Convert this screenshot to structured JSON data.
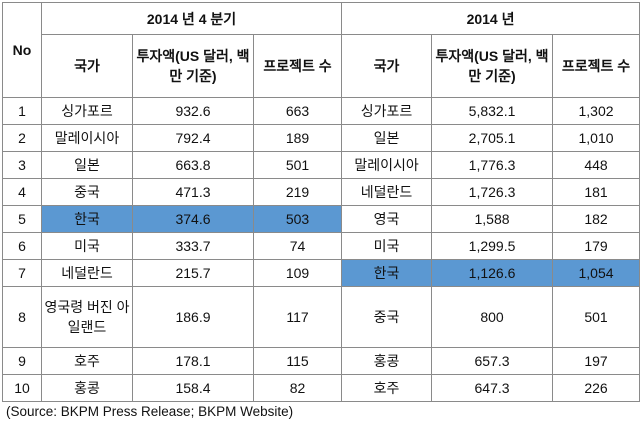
{
  "header": {
    "no": "No",
    "q4_group": "2014 년 4 분기",
    "year_group": "2014 년",
    "country": "국가",
    "investment": "투자액(US 달러, 백만 기준)",
    "projects": "프로젝트 수"
  },
  "highlight_color": "#5b98d2",
  "rows": [
    {
      "no": "1",
      "q4_country": "싱가포르",
      "q4_investment": "932.6",
      "q4_projects": "663",
      "y_country": "싱가포르",
      "y_investment": "5,832.1",
      "y_projects": "1,302"
    },
    {
      "no": "2",
      "q4_country": "말레이시아",
      "q4_investment": "792.4",
      "q4_projects": "189",
      "y_country": "일본",
      "y_investment": "2,705.1",
      "y_projects": "1,010"
    },
    {
      "no": "3",
      "q4_country": "일본",
      "q4_investment": "663.8",
      "q4_projects": "501",
      "y_country": "말레이시아",
      "y_investment": "1,776.3",
      "y_projects": "448"
    },
    {
      "no": "4",
      "q4_country": "중국",
      "q4_investment": "471.3",
      "q4_projects": "219",
      "y_country": "네덜란드",
      "y_investment": "1,726.3",
      "y_projects": "181"
    },
    {
      "no": "5",
      "q4_country": "한국",
      "q4_investment": "374.6",
      "q4_projects": "503",
      "y_country": "영국",
      "y_investment": "1,588",
      "y_projects": "182",
      "q4_highlight": true
    },
    {
      "no": "6",
      "q4_country": "미국",
      "q4_investment": "333.7",
      "q4_projects": "74",
      "y_country": "미국",
      "y_investment": "1,299.5",
      "y_projects": "179"
    },
    {
      "no": "7",
      "q4_country": "네덜란드",
      "q4_investment": "215.7",
      "q4_projects": "109",
      "y_country": "한국",
      "y_investment": "1,126.6",
      "y_projects": "1,054",
      "y_highlight": true
    },
    {
      "no": "8",
      "q4_country": "영국령 버진 아일랜드",
      "q4_investment": "186.9",
      "q4_projects": "117",
      "y_country": "중국",
      "y_investment": "800",
      "y_projects": "501"
    },
    {
      "no": "9",
      "q4_country": "호주",
      "q4_investment": "178.1",
      "q4_projects": "115",
      "y_country": "홍콩",
      "y_investment": "657.3",
      "y_projects": "197"
    },
    {
      "no": "10",
      "q4_country": "홍콩",
      "q4_investment": "158.4",
      "q4_projects": "82",
      "y_country": "호주",
      "y_investment": "647.3",
      "y_projects": "226"
    }
  ],
  "source": "(Source: BKPM Press Release; BKPM Website)"
}
